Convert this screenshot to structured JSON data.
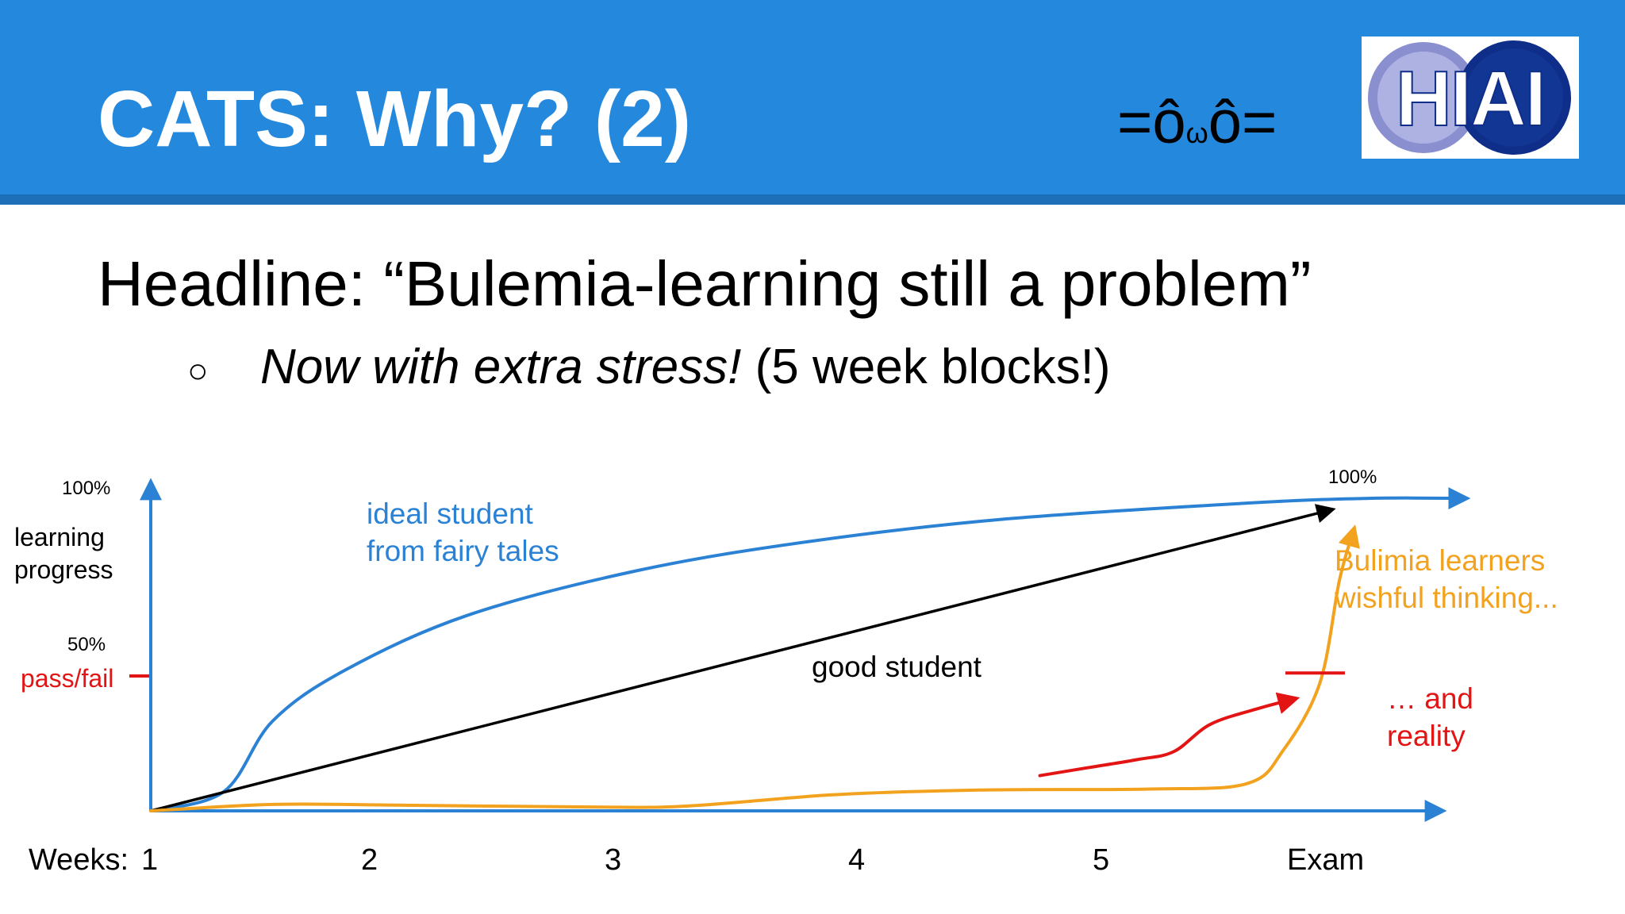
{
  "slide": {
    "title": "CATS: Why? (2)",
    "cat_face": {
      "before": "=ô",
      "small": "ω",
      "after": "ô="
    },
    "logo": {
      "text": "HIAI",
      "accent": "#0f2e8a",
      "ring": "#8a8fd0"
    },
    "headline": "Headline: “Bulemia-learning still a problem”",
    "sub_bullet": {
      "glyph": "○",
      "emphasis": "Now with extra stress!",
      "rest": " (5 week blocks!)"
    }
  },
  "colors": {
    "header": "#2488dd",
    "ideal": "#2b82d4",
    "good": "#000000",
    "bulimia": "#f2a21e",
    "reality": "#e31414"
  },
  "chart_data": {
    "type": "line",
    "xlabel": "Weeks:",
    "ylabel": "learning\nprogress",
    "x": [
      "1",
      "2",
      "3",
      "4",
      "5",
      "Exam"
    ],
    "ylim": [
      0,
      100
    ],
    "y_ticks": [
      {
        "value": 100,
        "label": "100%"
      },
      {
        "value": 50,
        "label": "50%"
      }
    ],
    "right_label": "100%",
    "threshold": {
      "value": 44,
      "label": "pass/fail"
    },
    "series": [
      {
        "label": "ideal student\nfrom fairy tales",
        "color": "#2b82d4",
        "points": [
          [
            0,
            0
          ],
          [
            0.3,
            6
          ],
          [
            0.5,
            28
          ],
          [
            0.8,
            44
          ],
          [
            1.3,
            61
          ],
          [
            2,
            75
          ],
          [
            2.7,
            84
          ],
          [
            3.5,
            91
          ],
          [
            4.5,
            96
          ],
          [
            5,
            97.5
          ],
          [
            5.4,
            97.5
          ]
        ]
      },
      {
        "label": "good student",
        "color": "#000000",
        "points": [
          [
            0,
            0
          ],
          [
            4.85,
            94
          ]
        ]
      },
      {
        "label": "Bulimia learners\nwishful thinking...",
        "color": "#f2a21e",
        "points": [
          [
            0,
            0
          ],
          [
            0.5,
            2
          ],
          [
            1,
            1.8
          ],
          [
            1.8,
            1.2
          ],
          [
            2.2,
            1.5
          ],
          [
            2.8,
            5
          ],
          [
            3.4,
            6.5
          ],
          [
            4.1,
            6.8
          ],
          [
            4.5,
            8.5
          ],
          [
            4,
            7
          ],
          [
            4.2,
            8
          ],
          [
            4.45,
            11
          ],
          [
            4.65,
            19
          ],
          [
            4.8,
            40
          ],
          [
            4.88,
            72
          ],
          [
            4.94,
            88
          ]
        ]
      },
      {
        "label": "… and\nreality",
        "color": "#e31414",
        "points": [
          [
            3.65,
            11
          ],
          [
            3.85,
            13.5
          ],
          [
            4.05,
            16
          ],
          [
            4.2,
            18.5
          ],
          [
            4.35,
            27
          ],
          [
            4.55,
            32
          ],
          [
            4.7,
            35
          ]
        ],
        "level_marker": 43
      }
    ]
  }
}
